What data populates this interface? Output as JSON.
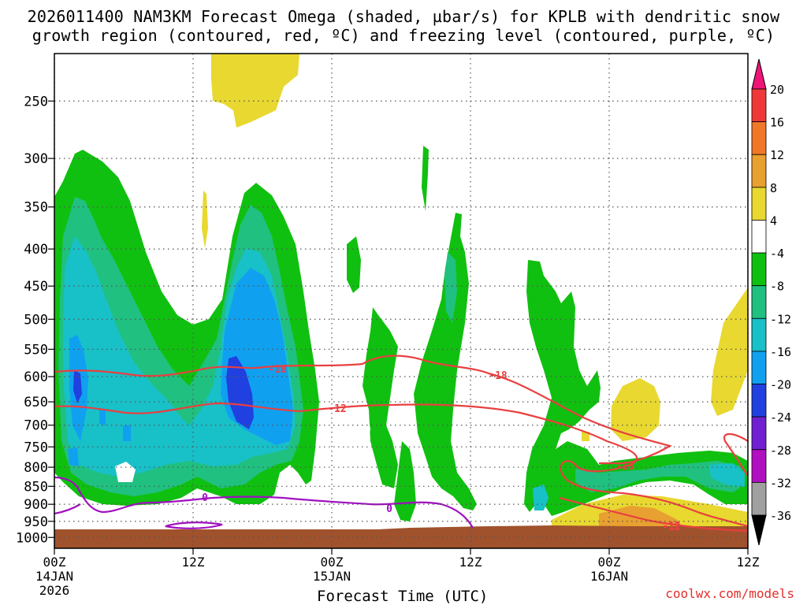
{
  "title_line1": "2026011400 NAM3KM Forecast Omega (shaded, µbar/s) for KPLB with dendritic snow",
  "title_line2": "growth region (contoured, red, ºC) and freezing level (contoured, purple, ºC)",
  "credit": "coolwx.com/models",
  "chart_data": {
    "type": "heatmap",
    "title": "2026011400 NAM3KM Forecast Omega (shaded, µbar/s) for KPLB with dendritic snow growth region (contoured, red, ºC) and freezing level (contoured, purple, ºC)",
    "xlabel": "Forecast Time (UTC)",
    "ylabel": "",
    "x_ticks": [
      {
        "label": "00Z",
        "date": "14JAN",
        "year": "2026",
        "hour": 0
      },
      {
        "label": "12Z",
        "date": "",
        "year": "",
        "hour": 12
      },
      {
        "label": "00Z",
        "date": "15JAN",
        "year": "",
        "hour": 24
      },
      {
        "label": "12Z",
        "date": "",
        "year": "",
        "hour": 36
      },
      {
        "label": "00Z",
        "date": "16JAN",
        "year": "",
        "hour": 48
      },
      {
        "label": "12Z",
        "date": "",
        "year": "",
        "hour": 60
      }
    ],
    "y_ticks": [
      250,
      300,
      350,
      400,
      450,
      500,
      550,
      600,
      650,
      700,
      750,
      800,
      850,
      900,
      950,
      1000
    ],
    "y_axis_scale": "log pressure (hPa), inverted",
    "grid": true,
    "colorbar": {
      "labels": [
        "20",
        "16",
        "12",
        "8",
        "4",
        "-4",
        "-8",
        "-12",
        "-16",
        "-20",
        "-24",
        "-28",
        "-32",
        "-36"
      ],
      "colors": [
        "#f01478",
        "#f03838",
        "#f07828",
        "#e8a030",
        "#e8d830",
        "#ffffff",
        "#10c010",
        "#20c080",
        "#18c0c8",
        "#10a0f0",
        "#2040e0",
        "#7020d0",
        "#b010c0",
        "#a0a0a0",
        "#000000"
      ]
    },
    "contour_labels": [
      {
        "value": "-18",
        "color": "#e84040"
      },
      {
        "value": "-12",
        "color": "#e84040"
      },
      {
        "value": "-12",
        "color": "#e84040"
      },
      {
        "value": "-18",
        "color": "#e84040"
      },
      {
        "value": "-18",
        "color": "#e84040"
      },
      {
        "value": "-12",
        "color": "#e84040"
      },
      {
        "value": "0",
        "color": "#a010c0"
      },
      {
        "value": "0",
        "color": "#a010c0"
      }
    ]
  }
}
